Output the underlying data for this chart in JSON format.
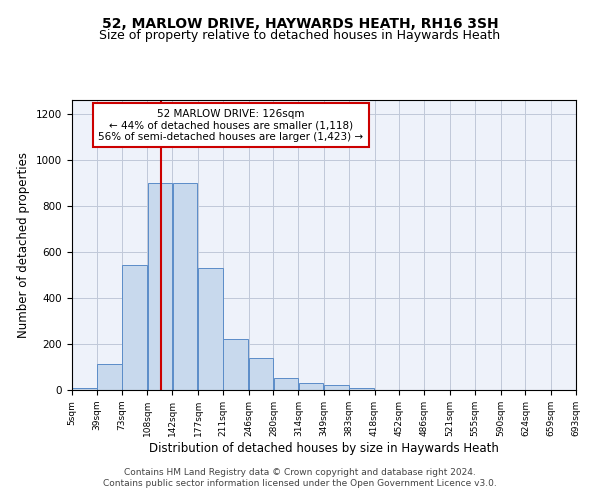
{
  "title": "52, MARLOW DRIVE, HAYWARDS HEATH, RH16 3SH",
  "subtitle": "Size of property relative to detached houses in Haywards Heath",
  "xlabel": "Distribution of detached houses by size in Haywards Heath",
  "ylabel": "Number of detached properties",
  "bar_color": "#c8d9ed",
  "bar_edge_color": "#5b8cc8",
  "background_color": "#eef2fa",
  "grid_color": "#c0c8d8",
  "vline_value": 126,
  "vline_color": "#cc0000",
  "annotation_text": "52 MARLOW DRIVE: 126sqm\n← 44% of detached houses are smaller (1,118)\n56% of semi-detached houses are larger (1,423) →",
  "annotation_box_color": "#cc0000",
  "bin_edges": [
    5,
    39,
    73,
    108,
    142,
    177,
    211,
    246,
    280,
    314,
    349,
    383,
    418,
    452,
    486,
    521,
    555,
    590,
    624,
    659,
    693
  ],
  "bar_heights": [
    8,
    115,
    545,
    900,
    900,
    530,
    220,
    140,
    52,
    32,
    20,
    8,
    0,
    0,
    0,
    0,
    0,
    0,
    0,
    0
  ],
  "tick_labels": [
    "5sqm",
    "39sqm",
    "73sqm",
    "108sqm",
    "142sqm",
    "177sqm",
    "211sqm",
    "246sqm",
    "280sqm",
    "314sqm",
    "349sqm",
    "383sqm",
    "418sqm",
    "452sqm",
    "486sqm",
    "521sqm",
    "555sqm",
    "590sqm",
    "624sqm",
    "659sqm",
    "693sqm"
  ],
  "ylim": [
    0,
    1260
  ],
  "yticks": [
    0,
    200,
    400,
    600,
    800,
    1000,
    1200
  ],
  "footer_text": "Contains HM Land Registry data © Crown copyright and database right 2024.\nContains public sector information licensed under the Open Government Licence v3.0.",
  "title_fontsize": 10,
  "subtitle_fontsize": 9,
  "xlabel_fontsize": 8.5,
  "ylabel_fontsize": 8.5,
  "footer_fontsize": 6.5
}
